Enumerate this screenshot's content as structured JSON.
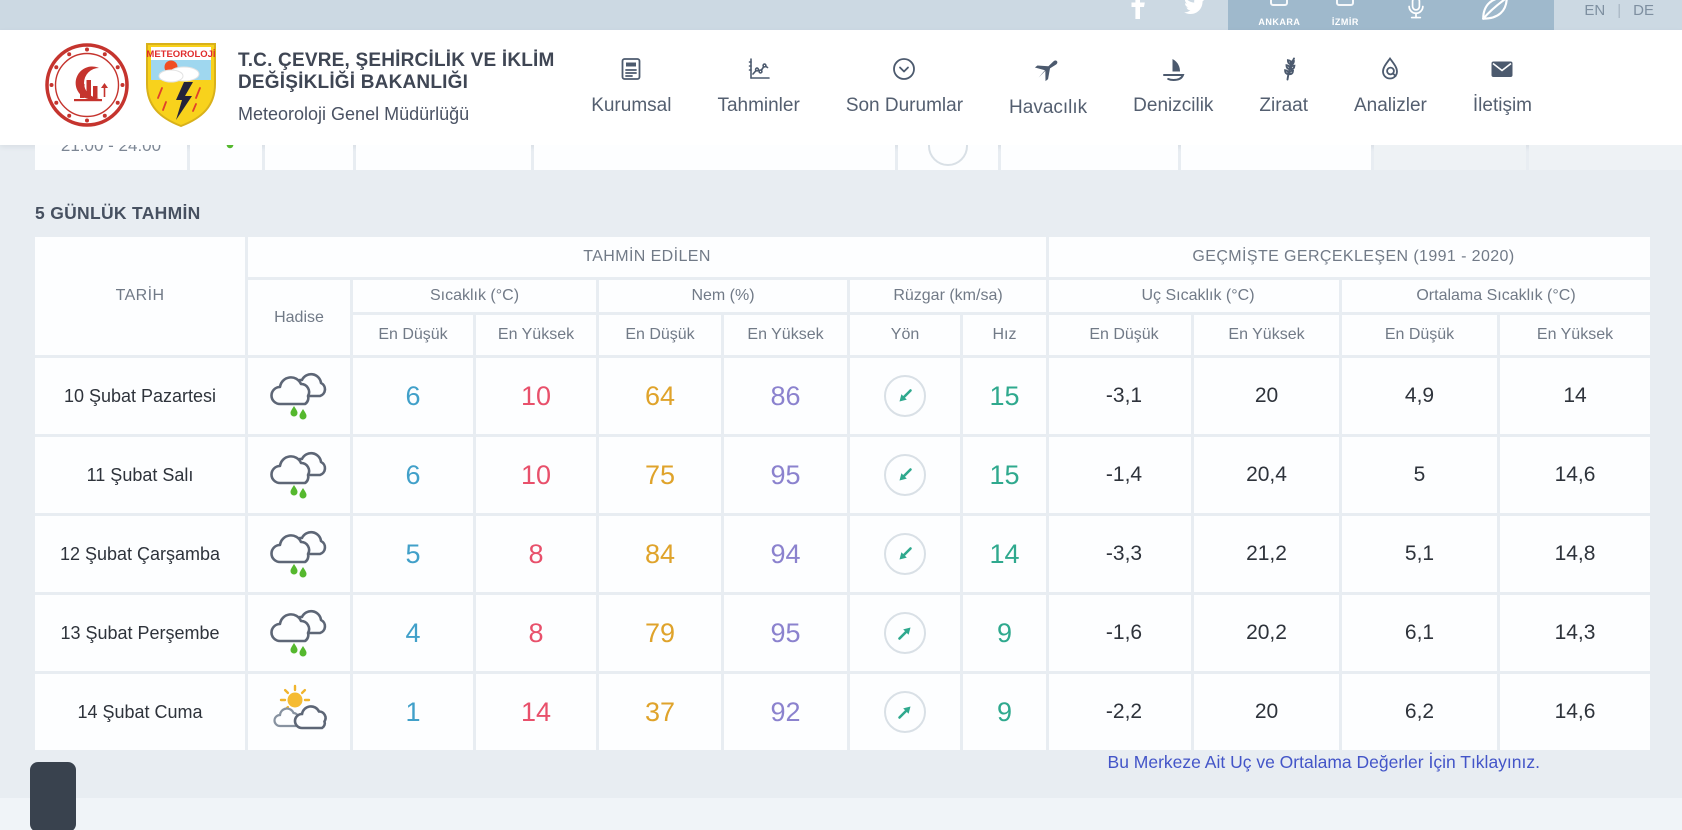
{
  "topbar": {
    "social": [
      {
        "label": "facebook"
      },
      {
        "label": "twitter"
      }
    ],
    "cities": [
      {
        "name": "ANKARA"
      },
      {
        "name": "İZMİR"
      }
    ],
    "lang": {
      "en": "EN",
      "separator": "|",
      "de": "DE"
    }
  },
  "header": {
    "logo_label": "METEOROLOJİ",
    "ministry_title": "T.C. ÇEVRE, ŞEHİRCİLİK VE İKLİM DEĞİŞİKLİĞİ BAKANLIĞI",
    "subtitle": "Meteoroloji Genel Müdürlüğü",
    "nav": [
      {
        "label": "Kurumsal",
        "icon": "clipboard-icon"
      },
      {
        "label": "Tahminler",
        "icon": "chart-icon"
      },
      {
        "label": "Son Durumlar",
        "icon": "status-clock-icon"
      },
      {
        "label": "Havacılık",
        "icon": "airplane-icon"
      },
      {
        "label": "Denizcilik",
        "icon": "sailboat-icon"
      },
      {
        "label": "Ziraat",
        "icon": "wheat-icon"
      },
      {
        "label": "Analizler",
        "icon": "drop-magnifier-icon"
      },
      {
        "label": "İletişim",
        "icon": "envelope-icon"
      }
    ]
  },
  "hourly_partial_row": {
    "time": "21:00 - 24:00",
    "icon": "rain-drops-icon"
  },
  "section_title": "5 GÜNLÜK TAHMİN",
  "forecast_table": {
    "col_tarih": "TARİH",
    "group_predicted": "TAHMİN EDİLEN",
    "group_past": "GEÇMİŞTE GERÇEKLEŞEN (1991 - 2020)",
    "col_hadise": "Hadise",
    "sub_sicaklik": "Sıcaklık (°C)",
    "sub_nem": "Nem (%)",
    "sub_ruzgar": "Rüzgar (km/sa)",
    "sub_uc": "Uç Sıcaklık (°C)",
    "sub_ortalama": "Ortalama Sıcaklık (°C)",
    "lbl_en_dusuk": "En Düşük",
    "lbl_en_yuksek": "En Yüksek",
    "lbl_yon": "Yön",
    "lbl_hiz": "Hız",
    "rows": [
      {
        "date": "10 Şubat Pazartesi",
        "icon": "rain-cloud-icon",
        "temp_min": "6",
        "temp_max": "10",
        "hum_min": "64",
        "hum_max": "86",
        "wind_dir": "SW",
        "wind_speed": "15",
        "ext_min": "-3,1",
        "ext_max": "20",
        "avg_min": "4,9",
        "avg_max": "14"
      },
      {
        "date": "11 Şubat Salı",
        "icon": "rain-cloud-icon",
        "temp_min": "6",
        "temp_max": "10",
        "hum_min": "75",
        "hum_max": "95",
        "wind_dir": "SW",
        "wind_speed": "15",
        "ext_min": "-1,4",
        "ext_max": "20,4",
        "avg_min": "5",
        "avg_max": "14,6"
      },
      {
        "date": "12 Şubat Çarşamba",
        "icon": "rain-cloud-icon",
        "temp_min": "5",
        "temp_max": "8",
        "hum_min": "84",
        "hum_max": "94",
        "wind_dir": "SW",
        "wind_speed": "14",
        "ext_min": "-3,3",
        "ext_max": "21,2",
        "avg_min": "5,1",
        "avg_max": "14,8"
      },
      {
        "date": "13 Şubat Perşembe",
        "icon": "rain-cloud-icon",
        "temp_min": "4",
        "temp_max": "8",
        "hum_min": "79",
        "hum_max": "95",
        "wind_dir": "NE",
        "wind_speed": "9",
        "ext_min": "-1,6",
        "ext_max": "20,2",
        "avg_min": "6,1",
        "avg_max": "14,3"
      },
      {
        "date": "14 Şubat Cuma",
        "icon": "sun-cloud-icon",
        "temp_min": "1",
        "temp_max": "14",
        "hum_min": "37",
        "hum_max": "92",
        "wind_dir": "NE",
        "wind_speed": "9",
        "ext_min": "-2,2",
        "ext_max": "20",
        "avg_min": "6,2",
        "avg_max": "14,6"
      }
    ]
  },
  "footer": {
    "link_text": "Bu Merkeze Ait Uç ve Ortalama Değerler İçin Tıklayınız."
  },
  "colors": {
    "min_blue": "#41a0c9",
    "max_red": "#e8506b",
    "hum_orange": "#dfa32b",
    "hum_purple": "#8b82ce",
    "wind_teal": "#2fa98e",
    "rain_green": "#55b82e",
    "link_blue": "#4355c8",
    "page_bg": "#e8edf2",
    "topbar_bg": "#ccd9e3"
  }
}
